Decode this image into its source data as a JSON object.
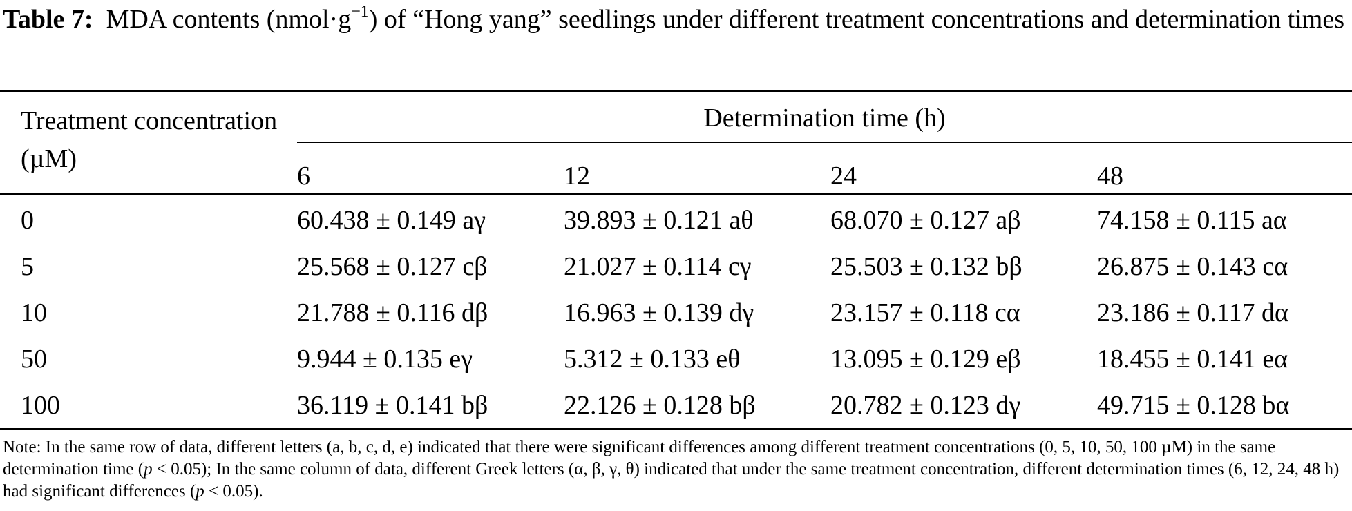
{
  "caption": {
    "label": "Table 7:",
    "text_before_sup": "MDA contents (nmol·g",
    "superscript": "−1",
    "text_after_sup": ") of “Hong yang” seedlings under different treatment concentrations and determination times"
  },
  "table": {
    "stub_header": "Treatment concentration (µM)",
    "spanner_header": "Determination time (h)",
    "column_headers": [
      "6",
      "12",
      "24",
      "48"
    ],
    "rows": [
      {
        "concentration": "0",
        "values": [
          "60.438 ± 0.149 aγ",
          "39.893 ± 0.121 aθ",
          "68.070 ± 0.127 aβ",
          "74.158 ± 0.115 aα"
        ]
      },
      {
        "concentration": "5",
        "values": [
          "25.568 ± 0.127 cβ",
          "21.027 ± 0.114 cγ",
          "25.503 ± 0.132 bβ",
          "26.875 ± 0.143 cα"
        ]
      },
      {
        "concentration": "10",
        "values": [
          "21.788 ± 0.116 dβ",
          "16.963 ± 0.139 dγ",
          "23.157 ± 0.118 cα",
          "23.186 ± 0.117 dα"
        ]
      },
      {
        "concentration": "50",
        "values": [
          "9.944 ± 0.135 eγ",
          "5.312 ± 0.133 eθ",
          "13.095 ± 0.129 eβ",
          "18.455 ± 0.141 eα"
        ]
      },
      {
        "concentration": "100",
        "values": [
          "36.119 ± 0.141 bβ",
          "22.126 ± 0.128 bβ",
          "20.782 ± 0.123 dγ",
          "49.715 ± 0.128 bα"
        ]
      }
    ]
  },
  "note": {
    "part1": "Note: In the same row of data, different letters (a, b, c, d, e) indicated that there were significant differences among different treatment concentrations (0, 5, 10, 50, 100 µM) in the same determination time (",
    "p1": "p",
    "part2": " < 0.05); In the same column of data, different Greek letters (α, β, γ, θ) indicated that under the same treatment concentration, different determination times (6, 12, 24, 48 h) had significant differences (",
    "p2": "p",
    "part3": " < 0.05)."
  }
}
